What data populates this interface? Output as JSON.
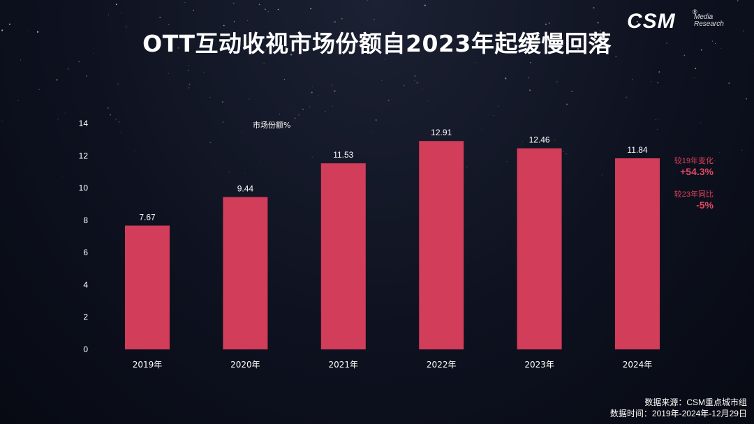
{
  "title": "OTT互动收视市场份额自2023年起缓慢回落",
  "logo": {
    "brand": "CSM",
    "reg_mark": "®",
    "tag_line1": "Media",
    "tag_line2": "Research"
  },
  "chart_data": {
    "type": "bar",
    "ylabel": "市场份额%",
    "categories": [
      "2019年",
      "2020年",
      "2021年",
      "2022年",
      "2023年",
      "2024年"
    ],
    "values": [
      7.67,
      9.44,
      11.53,
      12.91,
      12.46,
      11.84
    ],
    "value_labels": [
      "7.67",
      "9.44",
      "11.53",
      "12.91",
      "12.46",
      "11.84"
    ],
    "ylim": [
      0,
      14
    ],
    "yticks": [
      "0",
      "2",
      "4",
      "6",
      "8",
      "10",
      "12",
      "14"
    ],
    "grid": false,
    "bar_color": "#d23d5a"
  },
  "annotations": {
    "change_vs_2019_label": "较19年变化",
    "change_vs_2019_value": "+54.3%",
    "yoy_vs_2023_label": "较23年同比",
    "yoy_vs_2023_value": "-5%"
  },
  "colors": {
    "accent": "#d23d5a",
    "note": "#e04a63"
  },
  "source": {
    "line1": "数据来源：CSM重点城市组",
    "line2": "数据时间：2019年-2024年-12月29日"
  }
}
